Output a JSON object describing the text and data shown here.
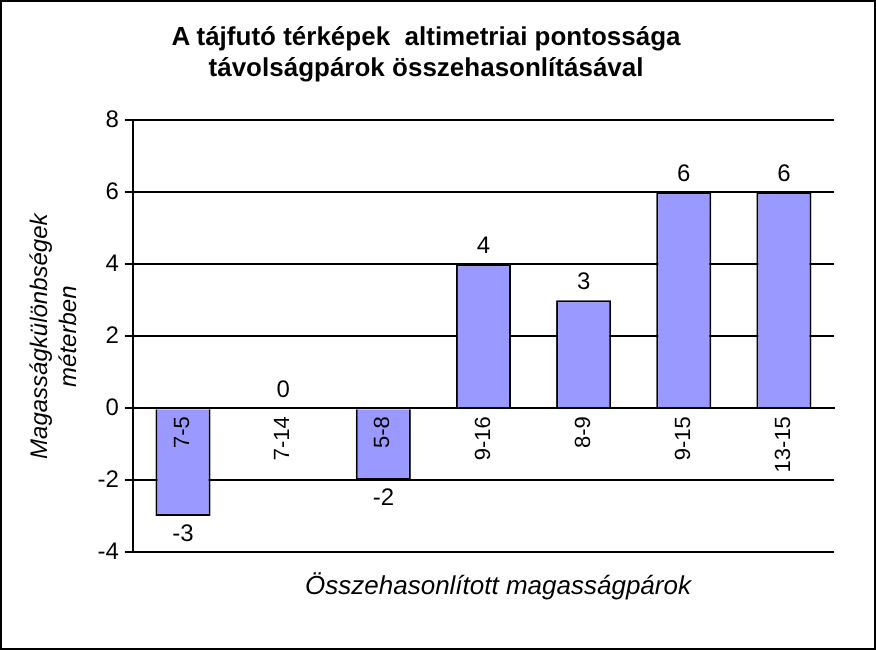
{
  "chart_data": {
    "type": "bar",
    "title": "A tájfutó térképek  altimetriai pontossága\ntávolságpárok összehasonlításával",
    "xlabel": "Összehasonlított magasságpárok",
    "ylabel": "Magasságkülönbségek\nméterben",
    "categories": [
      "7-5",
      "7-14",
      "5-8",
      "9-16",
      "8-9",
      "9-15",
      "13-15"
    ],
    "values": [
      -3,
      0,
      -2,
      4,
      3,
      6,
      6
    ],
    "color": "#9999ff",
    "ylim": [
      -4,
      8
    ],
    "yticks": [
      -4,
      -2,
      0,
      2,
      4,
      6,
      8
    ],
    "grid": "y",
    "data_labels": true
  }
}
